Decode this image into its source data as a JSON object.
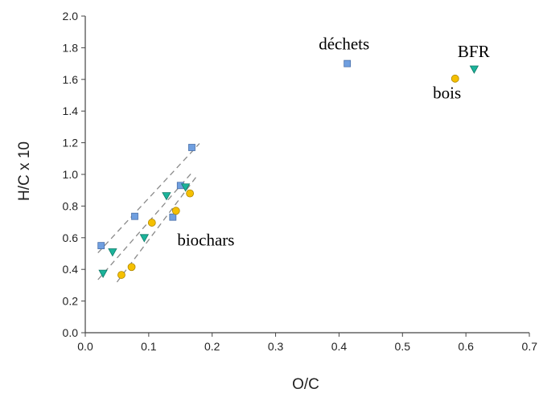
{
  "chart_data": {
    "type": "scatter",
    "xlabel": "O/C",
    "ylabel": "H/C x 10",
    "xlim": [
      0.0,
      0.7
    ],
    "ylim": [
      0.0,
      2.0
    ],
    "grid": false,
    "xticks": [
      "0.0",
      "0.1",
      "0.2",
      "0.3",
      "0.4",
      "0.5",
      "0.6",
      "0.7"
    ],
    "yticks": [
      "0.0",
      "0.2",
      "0.4",
      "0.6",
      "0.8",
      "1.0",
      "1.2",
      "1.4",
      "1.6",
      "1.8",
      "2.0"
    ],
    "series": [
      {
        "marker": "square",
        "color": "#6f9fe0",
        "edge": "#4a6fa8",
        "points": [
          {
            "x": 0.025,
            "y": 0.55
          },
          {
            "x": 0.078,
            "y": 0.735
          },
          {
            "x": 0.138,
            "y": 0.73
          },
          {
            "x": 0.15,
            "y": 0.93
          },
          {
            "x": 0.168,
            "y": 1.17
          },
          {
            "x": 0.413,
            "y": 1.7
          }
        ]
      },
      {
        "marker": "triangle-down",
        "color": "#1bb39a",
        "edge": "#0f7a68",
        "points": [
          {
            "x": 0.028,
            "y": 0.375
          },
          {
            "x": 0.043,
            "y": 0.51
          },
          {
            "x": 0.093,
            "y": 0.6
          },
          {
            "x": 0.128,
            "y": 0.865
          },
          {
            "x": 0.158,
            "y": 0.92
          },
          {
            "x": 0.613,
            "y": 1.665
          }
        ]
      },
      {
        "marker": "circle",
        "color": "#f5c000",
        "edge": "#b08800",
        "points": [
          {
            "x": 0.057,
            "y": 0.365
          },
          {
            "x": 0.073,
            "y": 0.415
          },
          {
            "x": 0.105,
            "y": 0.695
          },
          {
            "x": 0.143,
            "y": 0.77
          },
          {
            "x": 0.165,
            "y": 0.88
          },
          {
            "x": 0.583,
            "y": 1.605
          }
        ]
      }
    ],
    "trendlines": [
      {
        "x": [
          0.02,
          0.18
        ],
        "y": [
          0.505,
          1.195
        ]
      },
      {
        "x": [
          0.02,
          0.17
        ],
        "y": [
          0.335,
          1.02
        ]
      },
      {
        "x": [
          0.05,
          0.175
        ],
        "y": [
          0.32,
          0.985
        ]
      }
    ],
    "annotations": [
      {
        "text": "déchets",
        "x": 0.368,
        "y": 1.79
      },
      {
        "text": "BFR",
        "x": 0.587,
        "y": 1.74
      },
      {
        "text": "bois",
        "x": 0.548,
        "y": 1.48
      },
      {
        "text": "biochars",
        "x": 0.145,
        "y": 0.55
      }
    ]
  }
}
